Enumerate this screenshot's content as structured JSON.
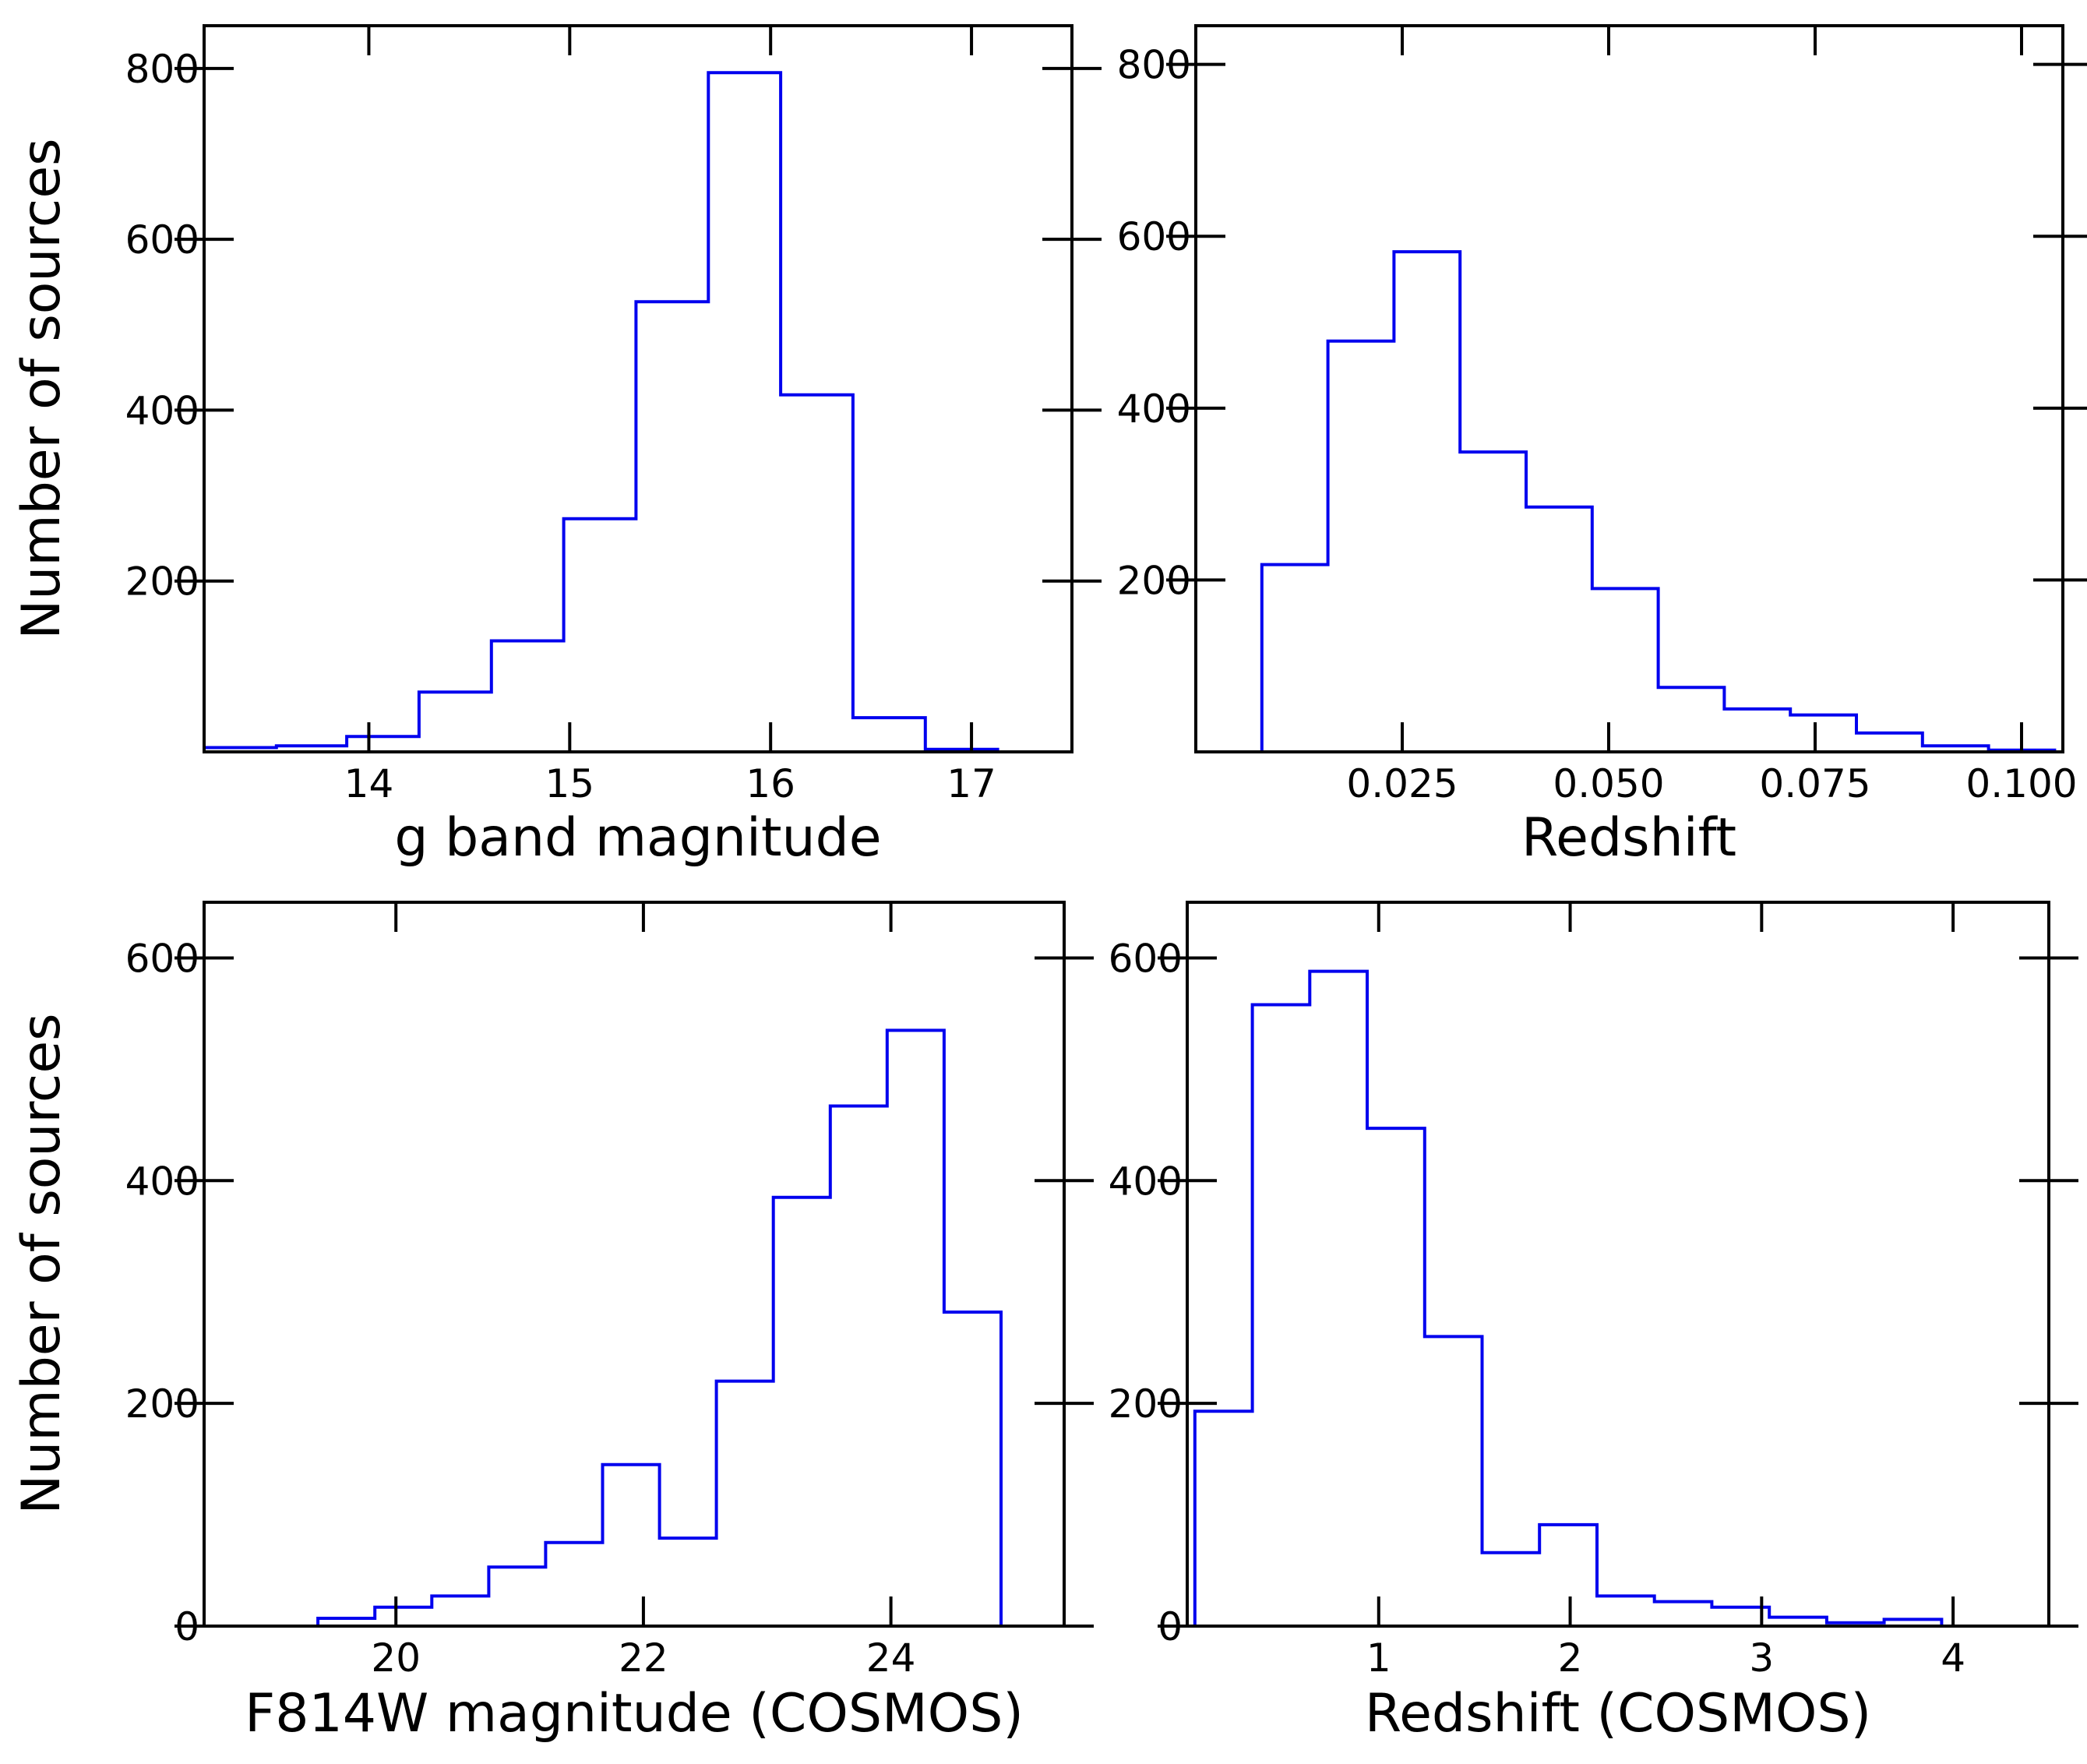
{
  "figure": {
    "accent_color": "#0000ee",
    "axis_color": "#000000"
  },
  "chart_data": [
    {
      "type": "histogram",
      "title": "",
      "xlabel": "g band magnitude",
      "ylabel": "Number of sources",
      "xlim": [
        13.18,
        17.5
      ],
      "ylim": [
        0,
        850
      ],
      "xticks": [
        14,
        15,
        16,
        17
      ],
      "xtick_labels": [
        "14",
        "15",
        "16",
        "17"
      ],
      "yticks": [
        200,
        400,
        600,
        800
      ],
      "ytick_labels": [
        "200",
        "400",
        "600",
        "800"
      ],
      "bin_edges": [
        13.18,
        13.54,
        13.89,
        14.25,
        14.61,
        14.97,
        15.33,
        15.69,
        16.05,
        16.41,
        16.77,
        17.13
      ],
      "counts": [
        5,
        7,
        18,
        70,
        130,
        273,
        527,
        795,
        418,
        40,
        3
      ],
      "color": "#0000ee"
    },
    {
      "type": "histogram",
      "title": "",
      "xlabel": "Redshift",
      "ylabel": "",
      "xlim": [
        0.0,
        0.105
      ],
      "ylim": [
        0,
        845
      ],
      "xticks": [
        0.025,
        0.05,
        0.075,
        0.1
      ],
      "xtick_labels": [
        "0.025",
        "0.050",
        "0.075",
        "0.100"
      ],
      "yticks": [
        200,
        400,
        600,
        800
      ],
      "ytick_labels": [
        "200",
        "400",
        "600",
        "800"
      ],
      "bin_edges": [
        0.008,
        0.016,
        0.024,
        0.032,
        0.04,
        0.048,
        0.056,
        0.064,
        0.072,
        0.08,
        0.088,
        0.096,
        0.104
      ],
      "counts": [
        218,
        478,
        582,
        349,
        285,
        190,
        75,
        50,
        43,
        22,
        7,
        2
      ],
      "color": "#0000ee"
    },
    {
      "type": "histogram",
      "title": "",
      "xlabel": "F814W magnitude (COSMOS)",
      "ylabel": "Number of sources",
      "xlim": [
        18.45,
        25.4
      ],
      "ylim": [
        0,
        650
      ],
      "xticks": [
        20,
        22,
        24
      ],
      "xtick_labels": [
        "20",
        "22",
        "24"
      ],
      "yticks": [
        0,
        200,
        400,
        600
      ],
      "ytick_labels": [
        "0",
        "200",
        "400",
        "600"
      ],
      "bin_edges": [
        19.37,
        19.83,
        20.29,
        20.75,
        21.21,
        21.67,
        22.13,
        22.59,
        23.05,
        23.51,
        23.97,
        24.43,
        24.89
      ],
      "counts": [
        7,
        17,
        27,
        53,
        75,
        145,
        79,
        220,
        385,
        467,
        535,
        282
      ],
      "color": "#0000ee"
    },
    {
      "type": "histogram",
      "title": "",
      "xlabel": "Redshift (COSMOS)",
      "ylabel": "",
      "xlim": [
        0.0,
        4.5
      ],
      "ylim": [
        0,
        650
      ],
      "xticks": [
        1,
        2,
        3,
        4
      ],
      "xtick_labels": [
        "1",
        "2",
        "3",
        "4"
      ],
      "yticks": [
        0,
        200,
        400,
        600
      ],
      "ytick_labels": [
        "0",
        "200",
        "400",
        "600"
      ],
      "bin_edges": [
        0.04,
        0.34,
        0.64,
        0.94,
        1.24,
        1.54,
        1.84,
        2.14,
        2.44,
        2.74,
        3.04,
        3.34,
        3.64,
        3.94
      ],
      "counts": [
        193,
        558,
        588,
        447,
        260,
        66,
        91,
        27,
        22,
        17,
        8,
        3,
        6
      ],
      "color": "#0000ee"
    }
  ]
}
